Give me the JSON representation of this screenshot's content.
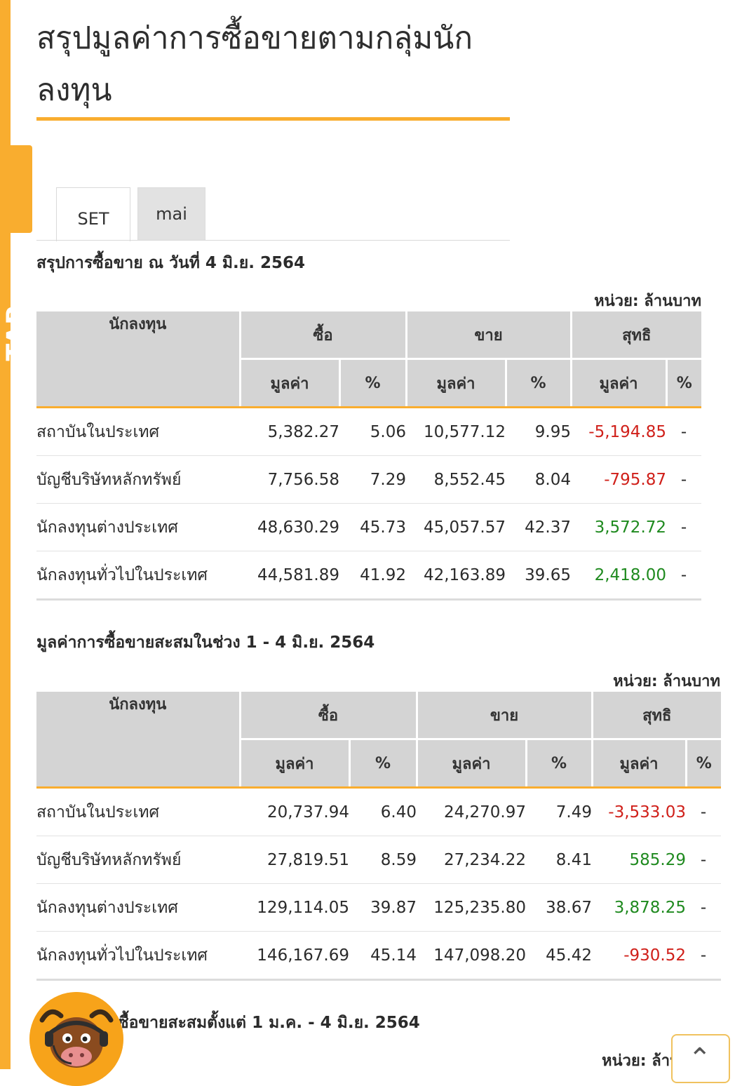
{
  "sidebar_tab": {
    "label": "TAP"
  },
  "page": {
    "title": "สรุปมูลค่าการซื้อขายตามกลุ่มนักลงทุน",
    "tabs": [
      {
        "label": "SET",
        "active": true
      },
      {
        "label": "mai",
        "active": false
      }
    ]
  },
  "colors": {
    "accent": "#f9ad2f",
    "negative": "#d0201a",
    "positive": "#1f8a1f",
    "header_bg": "#d4d4d4"
  },
  "headers": {
    "investor": "นักลงทุน",
    "buy": "ซื้อ",
    "sell": "ขาย",
    "net": "สุทธิ",
    "value": "มูลค่า",
    "percent": "%"
  },
  "sections": [
    {
      "title": "สรุปการซื้อขาย ณ วันที่ 4 มิ.ย. 2564",
      "unit": "หน่วย: ล้านบาท",
      "rows": [
        {
          "name": "สถาบันในประเทศ",
          "buy_value": "5,382.27",
          "buy_pct": "5.06",
          "sell_value": "10,577.12",
          "sell_pct": "9.95",
          "net_value": "-5,194.85",
          "net_pct": "-"
        },
        {
          "name": "บัญชีบริษัทหลักทรัพย์",
          "buy_value": "7,756.58",
          "buy_pct": "7.29",
          "sell_value": "8,552.45",
          "sell_pct": "8.04",
          "net_value": "-795.87",
          "net_pct": "-"
        },
        {
          "name": "นักลงทุนต่างประเทศ",
          "buy_value": "48,630.29",
          "buy_pct": "45.73",
          "sell_value": "45,057.57",
          "sell_pct": "42.37",
          "net_value": "3,572.72",
          "net_pct": "-"
        },
        {
          "name": "นักลงทุนทั่วไปในประเทศ",
          "buy_value": "44,581.89",
          "buy_pct": "41.92",
          "sell_value": "42,163.89",
          "sell_pct": "39.65",
          "net_value": "2,418.00",
          "net_pct": "-"
        }
      ]
    },
    {
      "title": "มูลค่าการซื้อขายสะสมในช่วง 1 - 4 มิ.ย. 2564",
      "unit": "หน่วย: ล้านบาท",
      "rows": [
        {
          "name": "สถาบันในประเทศ",
          "buy_value": "20,737.94",
          "buy_pct": "6.40",
          "sell_value": "24,270.97",
          "sell_pct": "7.49",
          "net_value": "-3,533.03",
          "net_pct": "-"
        },
        {
          "name": "บัญชีบริษัทหลักทรัพย์",
          "buy_value": "27,819.51",
          "buy_pct": "8.59",
          "sell_value": "27,234.22",
          "sell_pct": "8.41",
          "net_value": "585.29",
          "net_pct": "-"
        },
        {
          "name": "นักลงทุนต่างประเทศ",
          "buy_value": "129,114.05",
          "buy_pct": "39.87",
          "sell_value": "125,235.80",
          "sell_pct": "38.67",
          "net_value": "3,878.25",
          "net_pct": "-"
        },
        {
          "name": "นักลงทุนทั่วไปในประเทศ",
          "buy_value": "146,167.69",
          "buy_pct": "45.14",
          "sell_value": "147,098.20",
          "sell_pct": "45.42",
          "net_value": "-930.52",
          "net_pct": "-"
        }
      ]
    },
    {
      "title": "ซื้อขายสะสมตั้งแต่ 1 ม.ค. - 4 มิ.ย. 2564",
      "unit": "หน่วย: ล้านบา"
    }
  ],
  "widgets": {
    "mascot": "chat-mascot-icon",
    "scroll_top": "chevron-up-icon"
  }
}
